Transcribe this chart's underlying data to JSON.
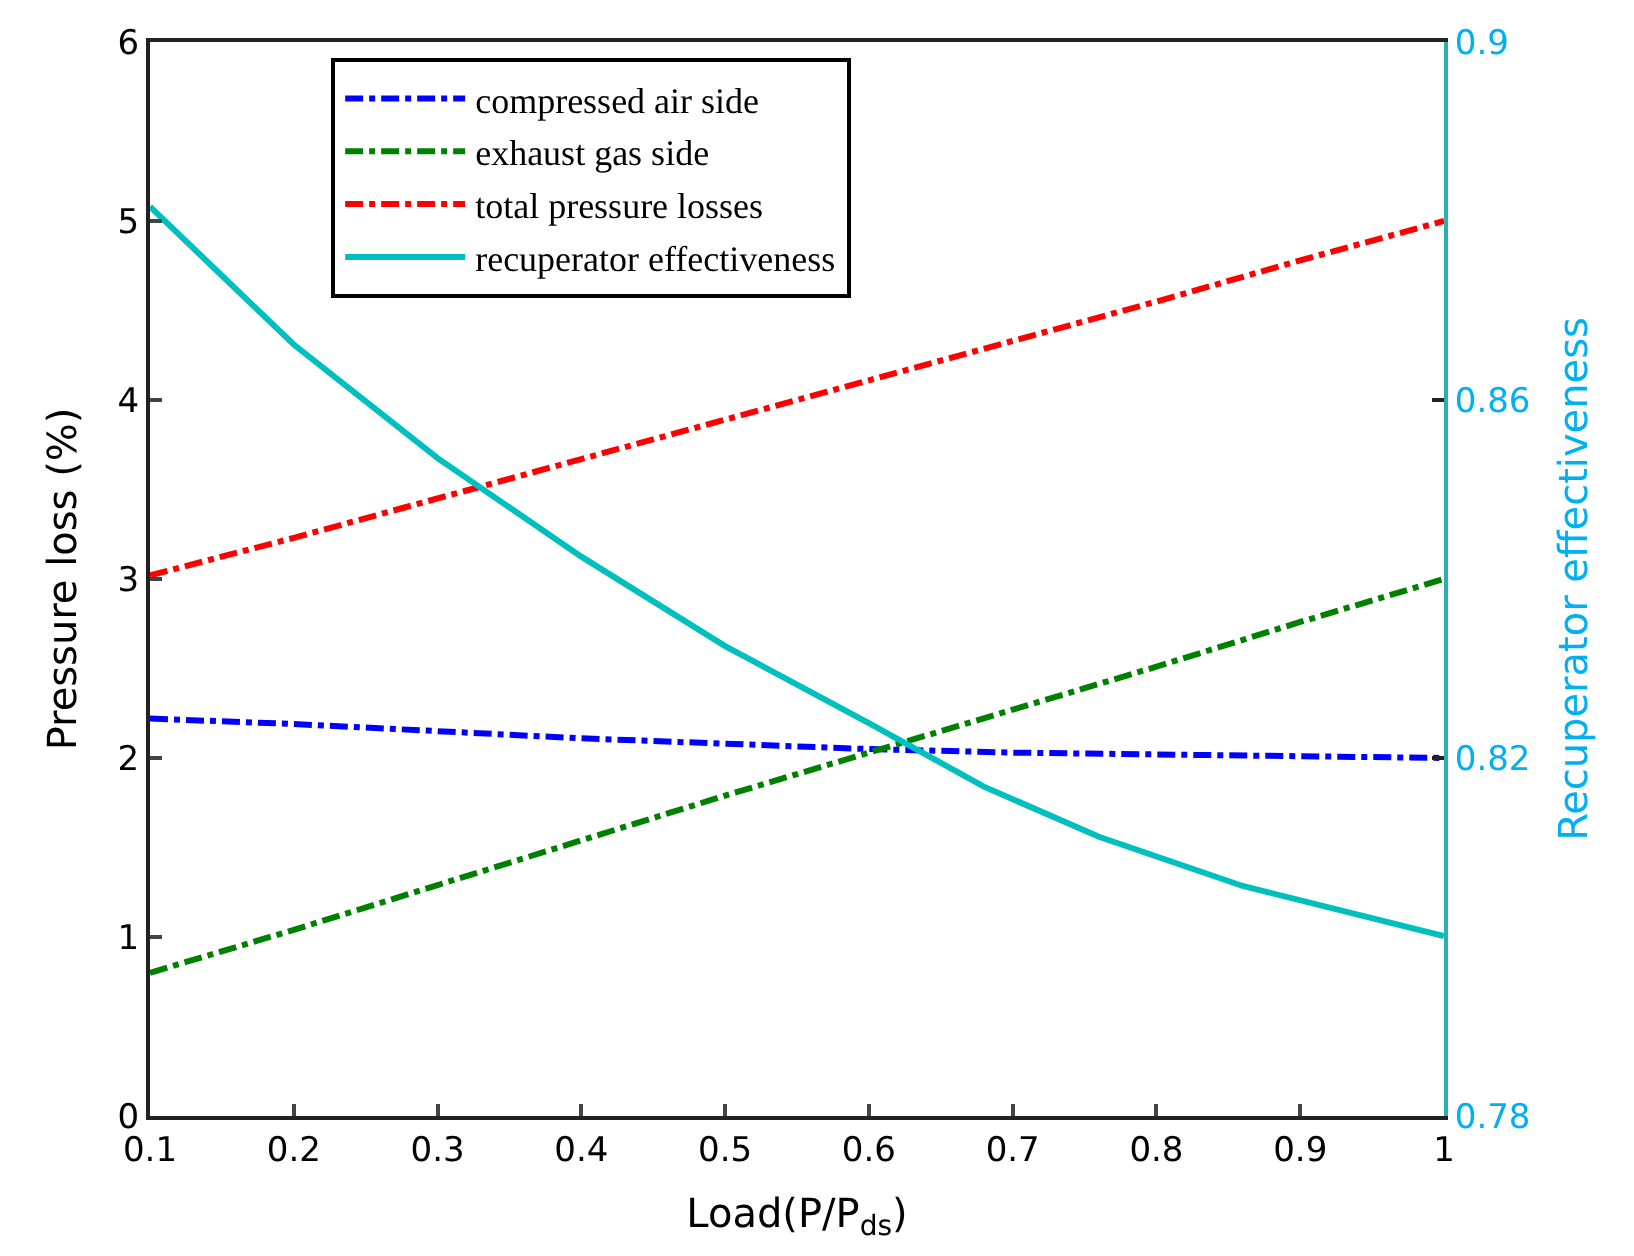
{
  "chart_data": {
    "type": "line",
    "xlabel": "Load(P/P$_{ds}$)",
    "ylabel": "Pressure loss (%)",
    "y2label": "Recuperator effectiveness",
    "x": [
      0.1,
      0.2,
      0.3,
      0.4,
      0.5,
      0.6,
      0.7,
      0.8,
      0.9,
      1.0
    ],
    "series": [
      {
        "name": "compressed air side",
        "color": "#0000ff",
        "line_style": "dashed",
        "values": [
          2.22,
          2.19,
          2.15,
          2.11,
          2.08,
          2.05,
          2.03,
          2.02,
          2.01,
          2.0
        ]
      },
      {
        "name": "exhaust gas side",
        "color": "#008000",
        "line_style": "dashed",
        "values": [
          0.8,
          1.04,
          1.29,
          1.54,
          1.79,
          2.03,
          2.27,
          2.51,
          2.76,
          3.0
        ]
      },
      {
        "name": "total pressure losses",
        "color": "#ff0000",
        "line_style": "dashed",
        "values": [
          3.02,
          3.23,
          3.45,
          3.67,
          3.89,
          4.11,
          4.33,
          4.55,
          4.78,
          5.0
        ]
      },
      {
        "name": "recuperator effectiveness",
        "color": "#00bfbf",
        "line_style": "solid",
        "axis": "y2",
        "x": [
          0.1,
          0.2,
          0.3,
          0.4,
          0.5,
          0.6,
          0.68,
          0.76,
          0.86,
          1.0
        ],
        "values": [
          0.8816,
          0.8662,
          0.8535,
          0.8425,
          0.8325,
          0.8239,
          0.8168,
          0.8112,
          0.8057,
          0.8001
        ]
      }
    ],
    "xlim": [
      0.1,
      1.0
    ],
    "xticks": [
      0.1,
      0.2,
      0.3,
      0.4,
      0.5,
      0.6,
      0.7,
      0.8,
      0.9,
      1
    ],
    "ylim": [
      0,
      6
    ],
    "yticks": [
      0,
      1,
      2,
      3,
      4,
      5,
      6
    ],
    "y2lim": [
      0.78,
      0.9
    ],
    "y2ticks": [
      0.78,
      0.82,
      0.86,
      0.9
    ],
    "legend": "top left",
    "marker": "none"
  }
}
